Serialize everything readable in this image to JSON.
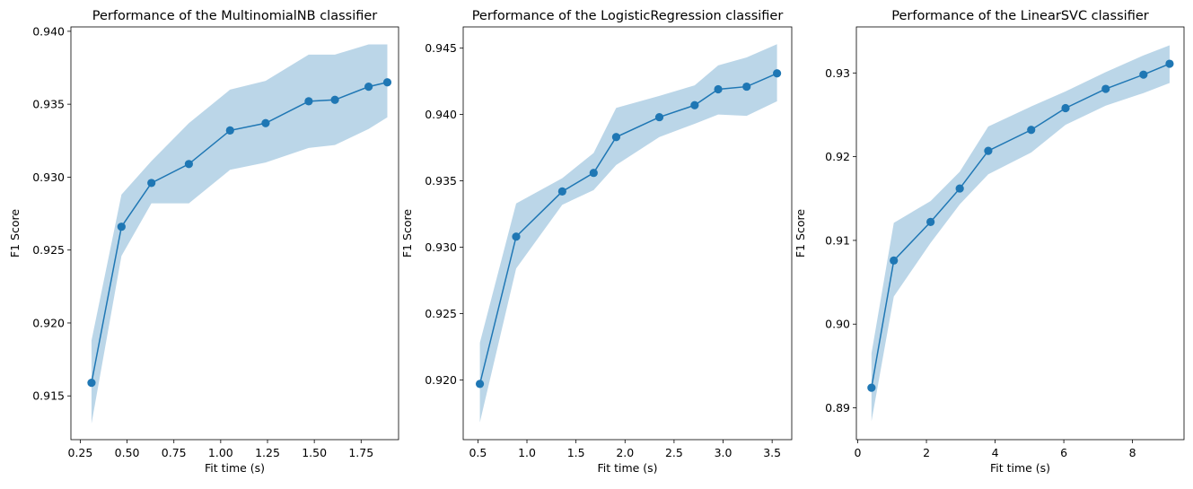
{
  "chart_data": [
    {
      "type": "line",
      "title": "Performance of the MultinomialNB classifier",
      "xlabel": "Fit time (s)",
      "ylabel": "F1 Score",
      "xlim": [
        0.2,
        1.95
      ],
      "ylim": [
        0.912,
        0.9403
      ],
      "xticks": [
        0.25,
        0.5,
        0.75,
        1.0,
        1.25,
        1.5,
        1.75
      ],
      "xtick_labels": [
        "0.25",
        "0.50",
        "0.75",
        "1.00",
        "1.25",
        "1.50",
        "1.75"
      ],
      "yticks": [
        0.915,
        0.92,
        0.925,
        0.93,
        0.935,
        0.94
      ],
      "ytick_labels": [
        "0.915",
        "0.920",
        "0.925",
        "0.930",
        "0.935",
        "0.940"
      ],
      "grid": false,
      "color": "#1f77b4",
      "band_color": "#1f77b4",
      "x": [
        0.31,
        0.47,
        0.63,
        0.83,
        1.05,
        1.24,
        1.47,
        1.61,
        1.79,
        1.89
      ],
      "y": [
        0.9159,
        0.9266,
        0.9296,
        0.9309,
        0.9332,
        0.9337,
        0.9352,
        0.9353,
        0.9362,
        0.9365
      ],
      "y_lower": [
        0.9131,
        0.9246,
        0.9282,
        0.9282,
        0.9305,
        0.931,
        0.932,
        0.9322,
        0.9333,
        0.9341
      ],
      "y_upper": [
        0.9188,
        0.9288,
        0.9311,
        0.9337,
        0.936,
        0.9366,
        0.9384,
        0.9384,
        0.9391,
        0.9391
      ]
    },
    {
      "type": "line",
      "title": "Performance of the LogisticRegression classifier",
      "xlabel": "Fit time (s)",
      "ylabel": "F1 Score",
      "xlim": [
        0.35,
        3.7
      ],
      "ylim": [
        0.9155,
        0.9466
      ],
      "xticks": [
        0.5,
        1.0,
        1.5,
        2.0,
        2.5,
        3.0,
        3.5
      ],
      "xtick_labels": [
        "0.5",
        "1.0",
        "1.5",
        "2.0",
        "2.5",
        "3.0",
        "3.5"
      ],
      "yticks": [
        0.92,
        0.925,
        0.93,
        0.935,
        0.94,
        0.945
      ],
      "ytick_labels": [
        "0.920",
        "0.925",
        "0.930",
        "0.935",
        "0.940",
        "0.945"
      ],
      "grid": false,
      "color": "#1f77b4",
      "band_color": "#1f77b4",
      "x": [
        0.52,
        0.89,
        1.36,
        1.68,
        1.91,
        2.35,
        2.71,
        2.95,
        3.24,
        3.55
      ],
      "y": [
        0.9197,
        0.9308,
        0.9342,
        0.9356,
        0.9383,
        0.9398,
        0.9407,
        0.9419,
        0.9421,
        0.9431
      ],
      "y_lower": [
        0.9168,
        0.9284,
        0.9332,
        0.9343,
        0.9362,
        0.9383,
        0.9393,
        0.94,
        0.9399,
        0.941
      ],
      "y_upper": [
        0.9228,
        0.9333,
        0.9352,
        0.9371,
        0.9405,
        0.9414,
        0.9422,
        0.9437,
        0.9443,
        0.9453
      ]
    },
    {
      "type": "line",
      "title": "Performance of the LinearSVC classifier",
      "xlabel": "Fit time (s)",
      "ylabel": "F1 Score",
      "xlim": [
        -0.04,
        9.5
      ],
      "ylim": [
        0.8862,
        0.9355
      ],
      "xticks": [
        0,
        2,
        4,
        6,
        8
      ],
      "xtick_labels": [
        "0",
        "2",
        "4",
        "6",
        "8"
      ],
      "yticks": [
        0.89,
        0.9,
        0.91,
        0.92,
        0.93
      ],
      "ytick_labels": [
        "0.89",
        "0.90",
        "0.91",
        "0.92",
        "0.93"
      ],
      "grid": false,
      "color": "#1f77b4",
      "band_color": "#1f77b4",
      "x": [
        0.4,
        1.05,
        2.12,
        2.97,
        3.8,
        5.05,
        6.05,
        7.22,
        8.32,
        9.08
      ],
      "y": [
        0.8924,
        0.9076,
        0.9122,
        0.9162,
        0.9207,
        0.9232,
        0.9258,
        0.9281,
        0.9298,
        0.9311
      ],
      "y_lower": [
        0.8884,
        0.9033,
        0.9097,
        0.9143,
        0.9179,
        0.9205,
        0.9238,
        0.9261,
        0.9276,
        0.9288
      ],
      "y_upper": [
        0.8965,
        0.9121,
        0.9147,
        0.9182,
        0.9236,
        0.926,
        0.9278,
        0.9301,
        0.9321,
        0.9333
      ]
    }
  ]
}
